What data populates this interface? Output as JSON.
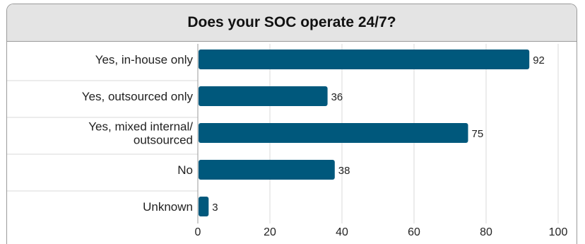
{
  "chart_data": {
    "type": "bar",
    "orientation": "horizontal",
    "title": "Does your SOC operate 24/7?",
    "categories": [
      [
        "Yes, in-house only"
      ],
      [
        "Yes, outsourced only"
      ],
      [
        "Yes, mixed internal/",
        "outsourced"
      ],
      [
        "No"
      ],
      [
        "Unknown"
      ]
    ],
    "values": [
      92,
      36,
      75,
      38,
      3
    ],
    "xlim": [
      0,
      100
    ],
    "xticks": [
      "0",
      "20",
      "40",
      "60",
      "80",
      "100"
    ],
    "grid": true,
    "bar_color": "#00587c"
  }
}
